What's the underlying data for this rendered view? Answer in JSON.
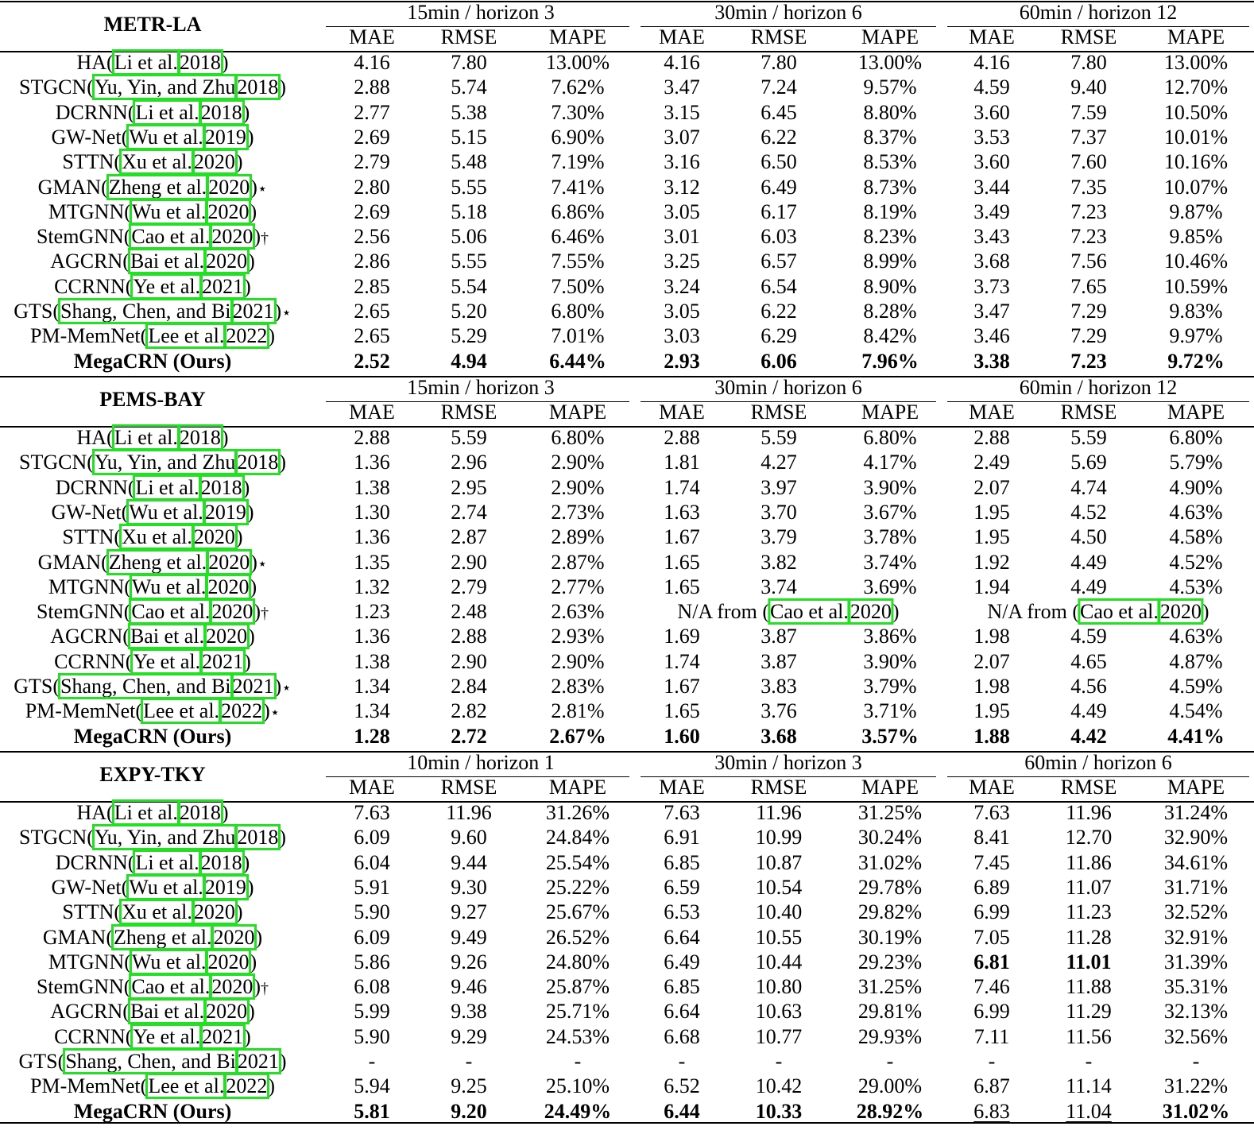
{
  "sections": [
    {
      "dataset": "METR-LA",
      "horizons": [
        "15min / horizon 3",
        "30min / horizon 6",
        "60min / horizon 12"
      ],
      "metrics": [
        "MAE",
        "RMSE",
        "MAPE"
      ],
      "rows": [
        {
          "name": "HA",
          "cite": [
            "Li et al.",
            "2018"
          ],
          "mark": "",
          "cells": [
            "4.16",
            "7.80",
            "13.00%",
            "4.16",
            "7.80",
            "13.00%",
            "4.16",
            "7.80",
            "13.00%"
          ]
        },
        {
          "name": "STGCN",
          "cite": [
            "Yu, Yin, and Zhu",
            "2018"
          ],
          "mark": "",
          "cells": [
            "2.88",
            "5.74",
            "7.62%",
            "3.47",
            "7.24",
            "9.57%",
            "4.59",
            "9.40",
            "12.70%"
          ]
        },
        {
          "name": "DCRNN",
          "cite": [
            "Li et al.",
            "2018"
          ],
          "mark": "",
          "cells": [
            "2.77",
            "5.38",
            "7.30%",
            "3.15",
            "6.45",
            "8.80%",
            "3.60",
            "7.59",
            "10.50%"
          ]
        },
        {
          "name": "GW-Net",
          "cite": [
            "Wu et al.",
            "2019"
          ],
          "mark": "",
          "cells": [
            "2.69",
            "5.15",
            "6.90%",
            "3.07",
            "6.22",
            "8.37%",
            "3.53",
            "7.37",
            "10.01%"
          ]
        },
        {
          "name": "STTN",
          "cite": [
            "Xu et al.",
            "2020"
          ],
          "mark": "",
          "cells": [
            "2.79",
            "5.48",
            "7.19%",
            "3.16",
            "6.50",
            "8.53%",
            "3.60",
            "7.60",
            "10.16%"
          ]
        },
        {
          "name": "GMAN",
          "cite": [
            "Zheng et al.",
            "2020"
          ],
          "mark": "⋆",
          "cells": [
            "2.80",
            "5.55",
            "7.41%",
            "3.12",
            "6.49",
            "8.73%",
            "3.44",
            "7.35",
            "10.07%"
          ]
        },
        {
          "name": "MTGNN",
          "cite": [
            "Wu et al.",
            "2020"
          ],
          "mark": "",
          "cells": [
            "2.69",
            "5.18",
            "6.86%",
            "3.05",
            "6.17",
            "8.19%",
            "3.49",
            "7.23",
            "9.87%"
          ]
        },
        {
          "name": "StemGNN",
          "cite": [
            "Cao et al.",
            "2020"
          ],
          "mark": "†",
          "cells": [
            "2.56",
            "5.06",
            "6.46%",
            "3.01",
            "6.03",
            "8.23%",
            "3.43",
            "7.23",
            "9.85%"
          ]
        },
        {
          "name": "AGCRN",
          "cite": [
            "Bai et al.",
            "2020"
          ],
          "mark": "",
          "cells": [
            "2.86",
            "5.55",
            "7.55%",
            "3.25",
            "6.57",
            "8.99%",
            "3.68",
            "7.56",
            "10.46%"
          ]
        },
        {
          "name": "CCRNN",
          "cite": [
            "Ye et al.",
            "2021"
          ],
          "mark": "",
          "cells": [
            "2.85",
            "5.54",
            "7.50%",
            "3.24",
            "6.54",
            "8.90%",
            "3.73",
            "7.65",
            "10.59%"
          ]
        },
        {
          "name": "GTS",
          "cite": [
            "Shang, Chen, and Bi",
            "2021"
          ],
          "mark": "⋆",
          "cells": [
            "2.65",
            "5.20",
            "6.80%",
            "3.05",
            "6.22",
            "8.28%",
            "3.47",
            "7.29",
            "9.83%"
          ]
        },
        {
          "name": "PM-MemNet",
          "cite": [
            "Lee et al.",
            "2022"
          ],
          "mark": "",
          "cells": [
            "2.65",
            "5.29",
            "7.01%",
            "3.03",
            "6.29",
            "8.42%",
            "3.46",
            "7.29",
            "9.97%"
          ]
        }
      ],
      "ours": {
        "label": "MegaCRN (Ours)",
        "cells": [
          "2.52",
          "4.94",
          "6.44%",
          "2.93",
          "6.06",
          "7.96%",
          "3.38",
          "7.23",
          "9.72%"
        ],
        "style": [
          "b",
          "b",
          "b",
          "b",
          "b",
          "b",
          "b",
          "b",
          "b"
        ]
      }
    },
    {
      "dataset": "PEMS-BAY",
      "horizons": [
        "15min / horizon 3",
        "30min / horizon 6",
        "60min / horizon 12"
      ],
      "metrics": [
        "MAE",
        "RMSE",
        "MAPE"
      ],
      "rows": [
        {
          "name": "HA",
          "cite": [
            "Li et al.",
            "2018"
          ],
          "mark": "",
          "cells": [
            "2.88",
            "5.59",
            "6.80%",
            "2.88",
            "5.59",
            "6.80%",
            "2.88",
            "5.59",
            "6.80%"
          ]
        },
        {
          "name": "STGCN",
          "cite": [
            "Yu, Yin, and Zhu",
            "2018"
          ],
          "mark": "",
          "cells": [
            "1.36",
            "2.96",
            "2.90%",
            "1.81",
            "4.27",
            "4.17%",
            "2.49",
            "5.69",
            "5.79%"
          ]
        },
        {
          "name": "DCRNN",
          "cite": [
            "Li et al.",
            "2018"
          ],
          "mark": "",
          "cells": [
            "1.38",
            "2.95",
            "2.90%",
            "1.74",
            "3.97",
            "3.90%",
            "2.07",
            "4.74",
            "4.90%"
          ]
        },
        {
          "name": "GW-Net",
          "cite": [
            "Wu et al.",
            "2019"
          ],
          "mark": "",
          "cells": [
            "1.30",
            "2.74",
            "2.73%",
            "1.63",
            "3.70",
            "3.67%",
            "1.95",
            "4.52",
            "4.63%"
          ]
        },
        {
          "name": "STTN",
          "cite": [
            "Xu et al.",
            "2020"
          ],
          "mark": "",
          "cells": [
            "1.36",
            "2.87",
            "2.89%",
            "1.67",
            "3.79",
            "3.78%",
            "1.95",
            "4.50",
            "4.58%"
          ]
        },
        {
          "name": "GMAN",
          "cite": [
            "Zheng et al.",
            "2020"
          ],
          "mark": "⋆",
          "cells": [
            "1.35",
            "2.90",
            "2.87%",
            "1.65",
            "3.82",
            "3.74%",
            "1.92",
            "4.49",
            "4.52%"
          ]
        },
        {
          "name": "MTGNN",
          "cite": [
            "Wu et al.",
            "2020"
          ],
          "mark": "",
          "cells": [
            "1.32",
            "2.79",
            "2.77%",
            "1.65",
            "3.74",
            "3.69%",
            "1.94",
            "4.49",
            "4.53%"
          ]
        },
        {
          "name": "StemGNN",
          "cite": [
            "Cao et al.",
            "2020"
          ],
          "mark": "†",
          "cells": [
            "1.23",
            "2.48",
            "2.63%"
          ],
          "na": {
            "prefix": "N/A from ",
            "cite": [
              "Cao et al.",
              "2020"
            ]
          }
        },
        {
          "name": "AGCRN",
          "cite": [
            "Bai et al.",
            "2020"
          ],
          "mark": "",
          "cells": [
            "1.36",
            "2.88",
            "2.93%",
            "1.69",
            "3.87",
            "3.86%",
            "1.98",
            "4.59",
            "4.63%"
          ]
        },
        {
          "name": "CCRNN",
          "cite": [
            "Ye et al.",
            "2021"
          ],
          "mark": "",
          "cells": [
            "1.38",
            "2.90",
            "2.90%",
            "1.74",
            "3.87",
            "3.90%",
            "2.07",
            "4.65",
            "4.87%"
          ]
        },
        {
          "name": "GTS",
          "cite": [
            "Shang, Chen, and Bi",
            "2021"
          ],
          "mark": "⋆",
          "cells": [
            "1.34",
            "2.84",
            "2.83%",
            "1.67",
            "3.83",
            "3.79%",
            "1.98",
            "4.56",
            "4.59%"
          ]
        },
        {
          "name": "PM-MemNet",
          "cite": [
            "Lee et al.",
            "2022"
          ],
          "mark": "⋆",
          "cells": [
            "1.34",
            "2.82",
            "2.81%",
            "1.65",
            "3.76",
            "3.71%",
            "1.95",
            "4.49",
            "4.54%"
          ]
        }
      ],
      "ours": {
        "label": "MegaCRN (Ours)",
        "cells": [
          "1.28",
          "2.72",
          "2.67%",
          "1.60",
          "3.68",
          "3.57%",
          "1.88",
          "4.42",
          "4.41%"
        ],
        "style": [
          "b",
          "b",
          "b",
          "b",
          "b",
          "b",
          "b",
          "b",
          "b"
        ]
      }
    },
    {
      "dataset": "EXPY-TKY",
      "horizons": [
        "10min / horizon 1",
        "30min / horizon 3",
        "60min / horizon 6"
      ],
      "metrics": [
        "MAE",
        "RMSE",
        "MAPE"
      ],
      "rows": [
        {
          "name": "HA",
          "cite": [
            "Li et al.",
            "2018"
          ],
          "mark": "",
          "cells": [
            "7.63",
            "11.96",
            "31.26%",
            "7.63",
            "11.96",
            "31.25%",
            "7.63",
            "11.96",
            "31.24%"
          ]
        },
        {
          "name": "STGCN",
          "cite": [
            "Yu, Yin, and Zhu",
            "2018"
          ],
          "mark": "",
          "cells": [
            "6.09",
            "9.60",
            "24.84%",
            "6.91",
            "10.99",
            "30.24%",
            "8.41",
            "12.70",
            "32.90%"
          ]
        },
        {
          "name": "DCRNN",
          "cite": [
            "Li et al.",
            "2018"
          ],
          "mark": "",
          "cells": [
            "6.04",
            "9.44",
            "25.54%",
            "6.85",
            "10.87",
            "31.02%",
            "7.45",
            "11.86",
            "34.61%"
          ]
        },
        {
          "name": "GW-Net",
          "cite": [
            "Wu et al.",
            "2019"
          ],
          "mark": "",
          "cells": [
            "5.91",
            "9.30",
            "25.22%",
            "6.59",
            "10.54",
            "29.78%",
            "6.89",
            "11.07",
            "31.71%"
          ]
        },
        {
          "name": "STTN",
          "cite": [
            "Xu et al.",
            "2020"
          ],
          "mark": "",
          "cells": [
            "5.90",
            "9.27",
            "25.67%",
            "6.53",
            "10.40",
            "29.82%",
            "6.99",
            "11.23",
            "32.52%"
          ]
        },
        {
          "name": "GMAN",
          "cite": [
            "Zheng et al.",
            "2020"
          ],
          "mark": "",
          "cells": [
            "6.09",
            "9.49",
            "26.52%",
            "6.64",
            "10.55",
            "30.19%",
            "7.05",
            "11.28",
            "32.91%"
          ]
        },
        {
          "name": "MTGNN",
          "cite": [
            "Wu et al.",
            "2020"
          ],
          "mark": "",
          "cells": [
            "5.86",
            "9.26",
            "24.80%",
            "6.49",
            "10.44",
            "29.23%",
            "6.81",
            "11.01",
            "31.39%"
          ],
          "style": [
            "",
            "",
            "",
            "",
            "",
            "",
            "b",
            "b",
            ""
          ]
        },
        {
          "name": "StemGNN",
          "cite": [
            "Cao et al.",
            "2020"
          ],
          "mark": "†",
          "cells": [
            "6.08",
            "9.46",
            "25.87%",
            "6.85",
            "10.80",
            "31.25%",
            "7.46",
            "11.88",
            "35.31%"
          ]
        },
        {
          "name": "AGCRN",
          "cite": [
            "Bai et al.",
            "2020"
          ],
          "mark": "",
          "cells": [
            "5.99",
            "9.38",
            "25.71%",
            "6.64",
            "10.63",
            "29.81%",
            "6.99",
            "11.29",
            "32.13%"
          ]
        },
        {
          "name": "CCRNN",
          "cite": [
            "Ye et al.",
            "2021"
          ],
          "mark": "",
          "cells": [
            "5.90",
            "9.29",
            "24.53%",
            "6.68",
            "10.77",
            "29.93%",
            "7.11",
            "11.56",
            "32.56%"
          ]
        },
        {
          "name": "GTS",
          "cite": [
            "Shang, Chen, and Bi",
            "2021"
          ],
          "mark": "",
          "cells": [
            "-",
            "-",
            "-",
            "-",
            "-",
            "-",
            "-",
            "-",
            "-"
          ]
        },
        {
          "name": "PM-MemNet",
          "cite": [
            "Lee et al.",
            "2022"
          ],
          "mark": "",
          "cells": [
            "5.94",
            "9.25",
            "25.10%",
            "6.52",
            "10.42",
            "29.00%",
            "6.87",
            "11.14",
            "31.22%"
          ]
        }
      ],
      "ours": {
        "label": "MegaCRN (Ours)",
        "cells": [
          "5.81",
          "9.20",
          "24.49%",
          "6.44",
          "10.33",
          "28.92%",
          "6.83",
          "11.04",
          "31.02%"
        ],
        "style": [
          "b",
          "b",
          "b",
          "b",
          "b",
          "b",
          "u",
          "u",
          "b"
        ]
      }
    }
  ]
}
